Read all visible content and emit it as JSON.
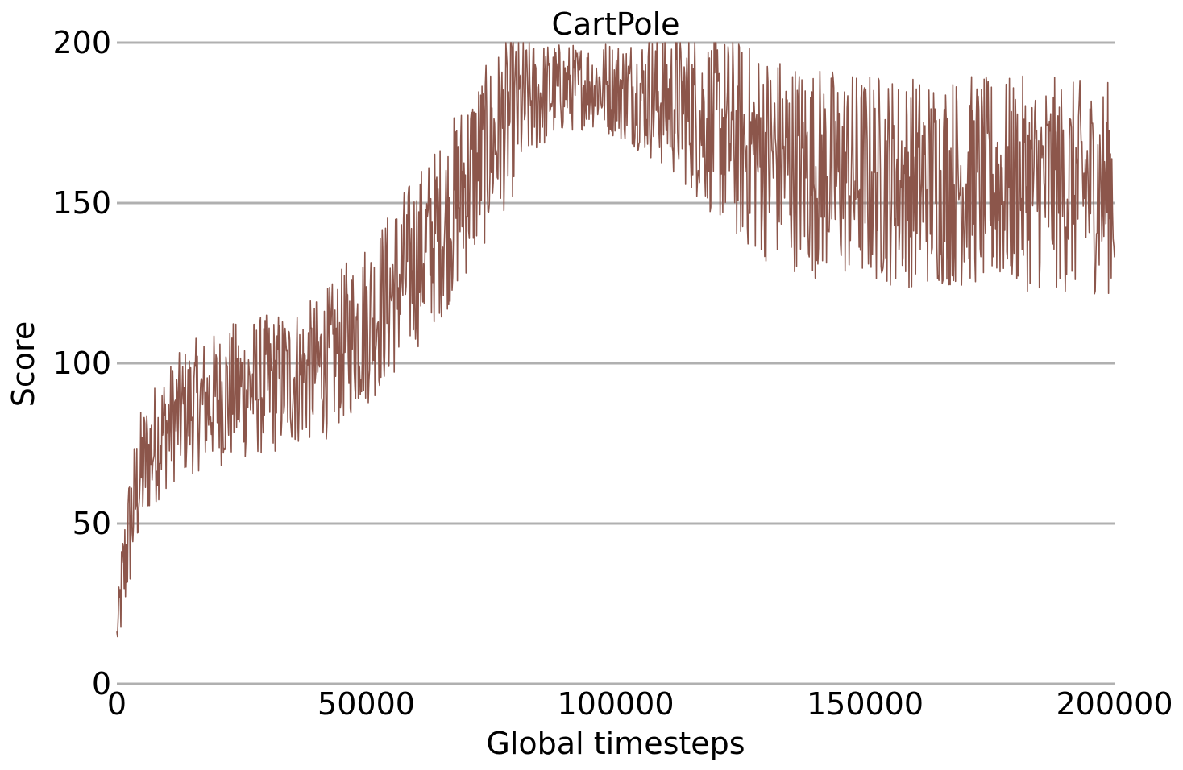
{
  "chart_data": {
    "type": "line",
    "title": "CartPole",
    "xlabel": "Global timesteps",
    "ylabel": "Score",
    "xlim": [
      0,
      200000
    ],
    "ylim": [
      0,
      200
    ],
    "x_ticks": [
      {
        "value": 0,
        "label": "0"
      },
      {
        "value": 50000,
        "label": "50000"
      },
      {
        "value": 100000,
        "label": "100000"
      },
      {
        "value": 150000,
        "label": "150000"
      },
      {
        "value": 200000,
        "label": "200000"
      }
    ],
    "y_ticks": [
      {
        "value": 0,
        "label": "0"
      },
      {
        "value": 50,
        "label": "50"
      },
      {
        "value": 100,
        "label": "100"
      },
      {
        "value": 150,
        "label": "150"
      },
      {
        "value": 200,
        "label": "200"
      }
    ],
    "grid": "horizontal",
    "grid_color": "#b0b0b0",
    "series": [
      {
        "color": "#8c564b",
        "x": [
          0,
          1000,
          2000,
          3000,
          4000,
          5000,
          6000,
          7000,
          8000,
          9000,
          10000,
          12000,
          14000,
          16000,
          18000,
          20000,
          22000,
          24000,
          26000,
          28000,
          30000,
          32000,
          34000,
          36000,
          38000,
          40000,
          42000,
          44000,
          46000,
          48000,
          50000,
          52000,
          54000,
          56000,
          58000,
          60000,
          62000,
          64000,
          66000,
          68000,
          70000,
          72000,
          74000,
          76000,
          78000,
          80000,
          82000,
          84000,
          86000,
          88000,
          90000,
          92000,
          94000,
          96000,
          98000,
          100000,
          102000,
          104000,
          106000,
          108000,
          110000,
          112000,
          114000,
          116000,
          118000,
          120000,
          122000,
          124000,
          126000,
          128000,
          130000,
          132000,
          134000,
          136000,
          138000,
          140000,
          142000,
          144000,
          146000,
          148000,
          150000,
          152000,
          154000,
          156000,
          158000,
          160000,
          162000,
          164000,
          166000,
          168000,
          170000,
          172000,
          174000,
          176000,
          178000,
          180000,
          182000,
          184000,
          186000,
          188000,
          190000,
          192000,
          194000,
          196000,
          198000,
          200000
        ],
        "y": [
          15,
          30,
          42,
          52,
          60,
          66,
          70,
          73,
          76,
          78,
          80,
          83,
          85,
          87,
          88,
          89,
          90,
          91,
          92,
          93,
          93,
          94,
          95,
          96,
          97,
          98,
          100,
          103,
          107,
          110,
          113,
          116,
          120,
          124,
          128,
          132,
          136,
          140,
          144,
          150,
          156,
          161,
          165,
          170,
          175,
          178,
          181,
          183,
          184,
          185,
          186,
          186,
          187,
          187,
          186,
          186,
          185,
          185,
          184,
          183,
          182,
          181,
          180,
          178,
          176,
          174,
          172,
          170,
          168,
          166,
          165,
          164,
          163,
          162,
          161,
          160,
          160,
          159,
          159,
          158,
          158,
          158,
          158,
          157,
          157,
          157,
          157,
          157,
          157,
          157,
          157,
          157,
          156,
          156,
          156,
          156,
          156,
          156,
          156,
          156,
          155,
          155,
          155,
          155,
          155,
          155
        ],
        "noise": [
          3,
          12,
          14,
          15,
          15,
          15,
          14,
          14,
          14,
          14,
          14,
          14,
          15,
          15,
          15,
          15,
          16,
          16,
          16,
          16,
          16,
          16,
          16,
          16,
          16,
          16,
          17,
          17,
          18,
          18,
          19,
          19,
          19,
          20,
          20,
          20,
          20,
          20,
          20,
          21,
          21,
          21,
          20,
          20,
          19,
          18,
          15,
          13,
          12,
          11,
          10,
          10,
          10,
          10,
          11,
          11,
          12,
          13,
          14,
          15,
          16,
          17,
          18,
          19,
          20,
          21,
          22,
          23,
          23,
          24,
          24,
          24,
          24,
          24,
          24,
          24,
          24,
          24,
          24,
          24,
          24,
          24,
          24,
          24,
          24,
          24,
          24,
          24,
          24,
          24,
          24,
          24,
          24,
          24,
          24,
          24,
          24,
          24,
          24,
          24,
          24,
          24,
          24,
          24,
          24,
          24
        ]
      }
    ]
  }
}
